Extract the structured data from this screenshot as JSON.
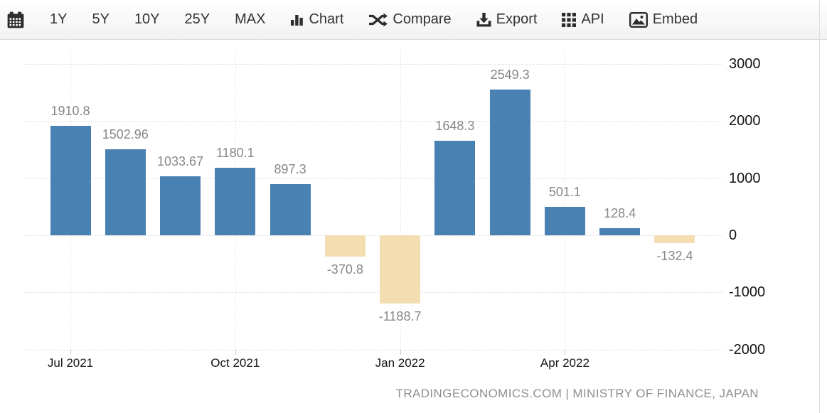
{
  "toolbar": {
    "calendar_button": {
      "icon": "calendar"
    },
    "range_buttons": [
      {
        "label": "1Y"
      },
      {
        "label": "5Y"
      },
      {
        "label": "10Y"
      },
      {
        "label": "25Y"
      },
      {
        "label": "MAX"
      }
    ],
    "action_buttons": [
      {
        "label": "Chart",
        "icon": "bar-chart"
      },
      {
        "label": "Compare",
        "icon": "shuffle"
      },
      {
        "label": "Export",
        "icon": "download"
      },
      {
        "label": "API",
        "icon": "grid"
      },
      {
        "label": "Embed",
        "icon": "image"
      }
    ]
  },
  "chart_data": {
    "type": "bar",
    "title": "",
    "xlabel": "",
    "ylabel": "",
    "values": [
      1910.8,
      1502.96,
      1033.67,
      1180.1,
      897.3,
      -370.8,
      -1188.7,
      1648.3,
      2549.3,
      501.1,
      128.4,
      -132.4
    ],
    "value_labels": [
      "1910.8",
      "1502.96",
      "1033.67",
      "1180.1",
      "897.3",
      "-370.8",
      "-1188.7",
      "1648.3",
      "2549.3",
      "501.1",
      "128.4",
      "-132.4"
    ],
    "x_ticks": [
      {
        "label": "Jul 2021",
        "bar_index": 0
      },
      {
        "label": "Oct 2021",
        "bar_index": 3
      },
      {
        "label": "Jan 2022",
        "bar_index": 6
      },
      {
        "label": "Apr 2022",
        "bar_index": 9
      }
    ],
    "y_ticks": [
      3000,
      2000,
      1000,
      0,
      -1000,
      -2000
    ],
    "ylim": [
      -2000,
      3250
    ],
    "grid": true,
    "legend": "none",
    "bar_colors": {
      "positive": "#4a81b3",
      "negative": "#f3ddb1"
    },
    "source_attribution": "TRADINGECONOMICS.COM | MINISTRY OF FINANCE, JAPAN"
  }
}
